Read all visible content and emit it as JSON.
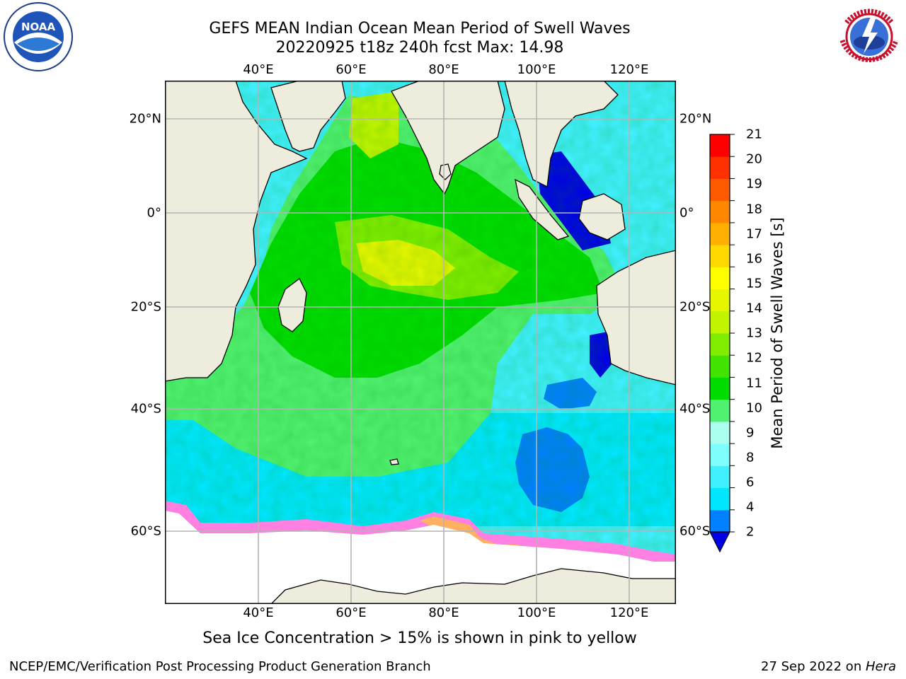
{
  "header": {
    "title_line1": "GEFS MEAN Indian Ocean Mean Period of Swell Waves",
    "title_line2": "20220925 t18z 240h fcst   Max: 14.98"
  },
  "logos": {
    "left": {
      "name": "noaa-logo",
      "text": "NOAA"
    },
    "right": {
      "name": "nws-logo",
      "text": "NATIONAL WEATHER SERVICE"
    }
  },
  "map": {
    "lon_ticks_top": [
      "40°E",
      "60°E",
      "80°E",
      "100°E",
      "120°E"
    ],
    "lon_ticks_bottom": [
      "40°E",
      "60°E",
      "80°E",
      "100°E",
      "120°E"
    ],
    "lat_ticks_left": [
      "20°N",
      "0°",
      "20°S",
      "40°S",
      "60°S"
    ],
    "lat_ticks_right": [
      "20°N",
      "0°",
      "20°S",
      "40°S",
      "60°S"
    ],
    "colors": {
      "land": "#eeecdc",
      "grid": "#b4b4b4",
      "sea_ice": "#ffffff"
    }
  },
  "colorbar": {
    "label": "Mean Period of Swell Waves [s]",
    "ticks": [
      "21",
      "20",
      "19",
      "18",
      "17",
      "16",
      "15",
      "14",
      "13",
      "12",
      "11",
      "10",
      "9",
      "8",
      "6",
      "4",
      "2"
    ],
    "colors": [
      "#0000e6",
      "#0080ff",
      "#00e6ff",
      "#40f0ff",
      "#80ffff",
      "#aaffee",
      "#50f070",
      "#00dc00",
      "#40e400",
      "#80ec00",
      "#c0f400",
      "#e6f600",
      "#ffff00",
      "#ffd800",
      "#ffb000",
      "#ff8800",
      "#ff5a00",
      "#ff3000",
      "#ff0000"
    ]
  },
  "footer": {
    "footnote": "Sea Ice Concentration > 15% is shown in pink to yellow",
    "credit": "NCEP/EMC/Verification Post Processing Product Generation Branch",
    "date_prefix": "27 Sep 2022 on ",
    "date_host": "Hera"
  }
}
